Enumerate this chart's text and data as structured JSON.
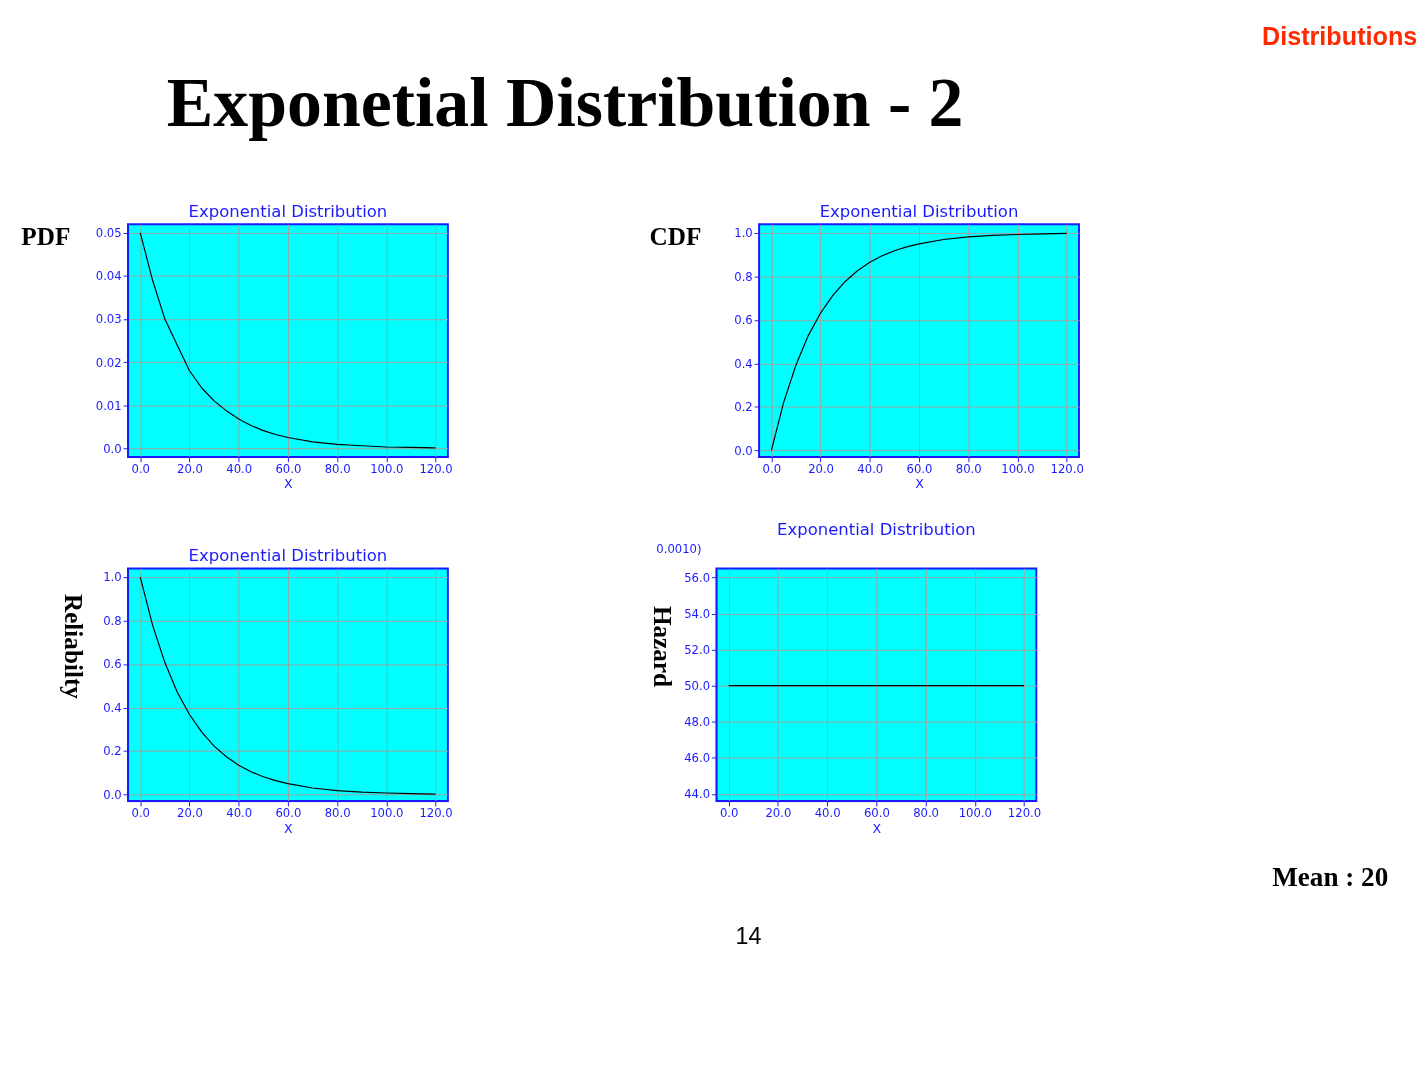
{
  "chart_data": [
    {
      "type": "line",
      "title": "Exponential Distribution",
      "xlabel": "X",
      "ylabel": "PDF",
      "annotations": [
        "Distributions",
        "Exponetial Distribution - 2"
      ],
      "grid": true,
      "xlim": [
        -5,
        125
      ],
      "xticks": [
        {
          "value": 0,
          "label": "0.0"
        },
        {
          "value": 20,
          "label": "20.0"
        },
        {
          "value": 40,
          "label": "40.0"
        },
        {
          "value": 60,
          "label": "60.0"
        },
        {
          "value": 80,
          "label": "80.0"
        },
        {
          "value": 100,
          "label": "100.0"
        },
        {
          "value": 120,
          "label": "120.0"
        }
      ],
      "ylim": [
        -0.002,
        0.052
      ],
      "yticks": [
        {
          "value": 0,
          "label": "0.0"
        },
        0.01,
        0.02,
        0.03,
        0.04,
        0.05
      ],
      "x": [
        0,
        5,
        10,
        15,
        20,
        25,
        30,
        35,
        40,
        45,
        50,
        55,
        60,
        70,
        80,
        90,
        100,
        110,
        120
      ],
      "series": [
        {
          "color": "#000000",
          "values": [
            0.05,
            0.039,
            0.03,
            0.024,
            0.018,
            0.014,
            0.011,
            0.0087,
            0.0068,
            0.0053,
            0.0041,
            0.0032,
            0.0025,
            0.0015,
            0.0009,
            0.0006,
            0.0003,
            0.0002,
            0.0001
          ]
        }
      ]
    },
    {
      "type": "line",
      "title": "Exponential Distribution",
      "xlabel": "X",
      "ylabel": "CDF",
      "grid": true,
      "xlim": [
        -5,
        125
      ],
      "xticks": [
        {
          "value": 0,
          "label": "0.0"
        },
        {
          "value": 20,
          "label": "20.0"
        },
        {
          "value": 40,
          "label": "40.0"
        },
        {
          "value": 60,
          "label": "60.0"
        },
        {
          "value": 80,
          "label": "80.0"
        },
        {
          "value": 100,
          "label": "100.0"
        },
        {
          "value": 120,
          "label": "120.0"
        }
      ],
      "ylim": [
        -0.03,
        1.04
      ],
      "yticks": [
        {
          "value": 0,
          "label": "0.0"
        },
        0.2,
        0.4,
        0.6,
        0.8,
        {
          "value": 1,
          "label": "1.0"
        }
      ],
      "x": [
        0,
        5,
        10,
        15,
        20,
        25,
        30,
        35,
        40,
        45,
        50,
        55,
        60,
        70,
        80,
        90,
        100,
        110,
        120
      ],
      "series": [
        {
          "color": "#000000",
          "values": [
            0,
            0.221,
            0.393,
            0.528,
            0.632,
            0.713,
            0.777,
            0.826,
            0.865,
            0.895,
            0.918,
            0.936,
            0.95,
            0.97,
            0.982,
            0.989,
            0.993,
            0.996,
            0.998
          ]
        }
      ]
    },
    {
      "type": "line",
      "title": "Exponential Distribution",
      "xlabel": "X",
      "ylabel": "Reliabilty",
      "grid": true,
      "xlim": [
        -5,
        125
      ],
      "xticks": [
        {
          "value": 0,
          "label": "0.0"
        },
        {
          "value": 20,
          "label": "20.0"
        },
        {
          "value": 40,
          "label": "40.0"
        },
        {
          "value": 60,
          "label": "60.0"
        },
        {
          "value": 80,
          "label": "80.0"
        },
        {
          "value": 100,
          "label": "100.0"
        },
        {
          "value": 120,
          "label": "120.0"
        }
      ],
      "ylim": [
        -0.03,
        1.04
      ],
      "yticks": [
        {
          "value": 0,
          "label": "0.0"
        },
        0.2,
        0.4,
        0.6,
        0.8,
        {
          "value": 1,
          "label": "1.0"
        }
      ],
      "x": [
        0,
        5,
        10,
        15,
        20,
        25,
        30,
        35,
        40,
        45,
        50,
        55,
        60,
        70,
        80,
        90,
        100,
        110,
        120
      ],
      "series": [
        {
          "color": "#000000",
          "values": [
            1,
            0.779,
            0.607,
            0.472,
            0.368,
            0.287,
            0.223,
            0.174,
            0.135,
            0.105,
            0.082,
            0.064,
            0.05,
            0.03,
            0.018,
            0.011,
            0.007,
            0.004,
            0.002
          ]
        }
      ]
    },
    {
      "type": "line",
      "title": "Exponential Distribution",
      "xlabel": "X",
      "ylabel": "Hazard",
      "annotations": [
        "0.0010)",
        "Mean : 20",
        "14"
      ],
      "grid": true,
      "xlim": [
        -5,
        125
      ],
      "xticks": [
        {
          "value": 0,
          "label": "0.0"
        },
        {
          "value": 20,
          "label": "20.0"
        },
        {
          "value": 40,
          "label": "40.0"
        },
        {
          "value": 60,
          "label": "60.0"
        },
        {
          "value": 80,
          "label": "80.0"
        },
        {
          "value": 100,
          "label": "100.0"
        },
        {
          "value": 120,
          "label": "120.0"
        }
      ],
      "ylim": [
        43.6,
        56.5
      ],
      "yticks": [
        {
          "value": 44,
          "label": "44.0"
        },
        {
          "value": 46,
          "label": "46.0"
        },
        {
          "value": 48,
          "label": "48.0"
        },
        {
          "value": 50,
          "label": "50.0"
        },
        {
          "value": 52,
          "label": "52.0"
        },
        {
          "value": 54,
          "label": "54.0"
        },
        {
          "value": 56,
          "label": "56.0"
        }
      ],
      "x": [
        0,
        120
      ],
      "series": [
        {
          "color": "#000000",
          "values": [
            50,
            50
          ]
        }
      ]
    }
  ]
}
